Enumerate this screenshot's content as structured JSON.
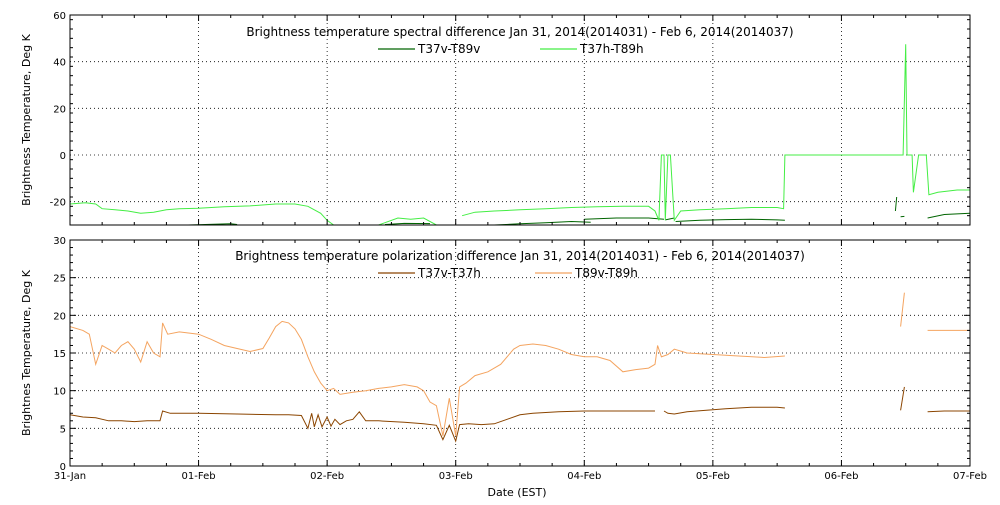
{
  "chart_data": [
    {
      "type": "line",
      "title": "Brightness temperature spectral difference     Jan 31, 2014(2014031) - Feb  6, 2014(2014037)",
      "xlabel": "",
      "ylabel": "Brightness Temperature, Deg K",
      "xlim": [
        0,
        7
      ],
      "ylim": [
        -30,
        60
      ],
      "yticks": [
        -20,
        0,
        20,
        40,
        60
      ],
      "grid": true,
      "legend_position": "top-center",
      "series": [
        {
          "name": "T37v-T89v",
          "color": "#006400",
          "segments": [
            [
              [
                0.92,
                -30.0
              ],
              [
                1.25,
                -29.5
              ],
              [
                1.3,
                -29.8
              ]
            ],
            [
              [
                2.45,
                -29.8
              ],
              [
                2.6,
                -29.3
              ],
              [
                2.8,
                -29.4
              ]
            ],
            [
              [
                3.3,
                -30.0
              ],
              [
                3.5,
                -29.5
              ],
              [
                3.7,
                -29.0
              ],
              [
                3.9,
                -28.5
              ],
              [
                4.05,
                -28.8
              ]
            ],
            [
              [
                4.0,
                -27.5
              ],
              [
                4.25,
                -27.0
              ],
              [
                4.5,
                -27.0
              ],
              [
                4.62,
                -27.5
              ]
            ],
            [
              [
                4.63,
                -27.8
              ],
              [
                4.7,
                -27.0
              ]
            ],
            [
              [
                4.71,
                -28.5
              ],
              [
                4.9,
                -28.0
              ],
              [
                5.1,
                -27.7
              ],
              [
                5.3,
                -27.5
              ],
              [
                5.5,
                -27.8
              ],
              [
                5.56,
                -28.0
              ]
            ],
            [
              [
                6.42,
                -24.0
              ],
              [
                6.43,
                -18.0
              ]
            ],
            [
              [
                6.46,
                -26.5
              ],
              [
                6.49,
                -26.3
              ]
            ],
            [
              [
                6.67,
                -27.0
              ],
              [
                6.8,
                -25.5
              ],
              [
                7.0,
                -25.0
              ]
            ]
          ]
        },
        {
          "name": "T37h-T89h",
          "color": "#44EE44",
          "segments": [
            [
              [
                0.0,
                -21.0
              ],
              [
                0.12,
                -20.5
              ],
              [
                0.2,
                -21.0
              ],
              [
                0.25,
                -23.0
              ],
              [
                0.35,
                -23.5
              ],
              [
                0.45,
                -24.0
              ],
              [
                0.55,
                -25.0
              ],
              [
                0.65,
                -24.5
              ],
              [
                0.75,
                -23.5
              ],
              [
                0.85,
                -23.0
              ],
              [
                1.0,
                -22.8
              ],
              [
                1.2,
                -22.2
              ],
              [
                1.4,
                -21.8
              ],
              [
                1.6,
                -21.0
              ],
              [
                1.75,
                -21.0
              ],
              [
                1.85,
                -22.0
              ],
              [
                1.95,
                -25.0
              ],
              [
                2.0,
                -28.0
              ],
              [
                2.05,
                -30.0
              ]
            ],
            [
              [
                2.4,
                -30.0
              ],
              [
                2.55,
                -27.0
              ],
              [
                2.65,
                -27.5
              ],
              [
                2.75,
                -27.0
              ],
              [
                2.85,
                -30.0
              ]
            ],
            [
              [
                3.05,
                -26.0
              ],
              [
                3.15,
                -24.5
              ],
              [
                3.3,
                -24.0
              ],
              [
                3.5,
                -23.5
              ],
              [
                3.7,
                -23.0
              ],
              [
                3.9,
                -22.5
              ],
              [
                4.1,
                -22.2
              ],
              [
                4.3,
                -22.0
              ],
              [
                4.5,
                -22.0
              ],
              [
                4.55,
                -24.0
              ],
              [
                4.58,
                -28.0
              ],
              [
                4.6,
                0.0
              ],
              [
                4.62,
                0.0
              ],
              [
                4.63,
                -28.0
              ],
              [
                4.65,
                0.0
              ],
              [
                4.67,
                0.0
              ],
              [
                4.7,
                -28.0
              ],
              [
                4.75,
                -24.0
              ],
              [
                4.9,
                -23.5
              ],
              [
                5.1,
                -23.0
              ],
              [
                5.3,
                -22.5
              ],
              [
                5.5,
                -22.5
              ],
              [
                5.55,
                -23.0
              ],
              [
                5.56,
                0.0
              ],
              [
                5.8,
                0.0
              ],
              [
                6.0,
                0.0
              ],
              [
                6.2,
                0.0
              ],
              [
                6.4,
                0.0
              ],
              [
                6.48,
                0.0
              ],
              [
                6.5,
                47.5
              ],
              [
                6.51,
                0.0
              ],
              [
                6.55,
                0.0
              ],
              [
                6.56,
                -16.0
              ],
              [
                6.6,
                0.0
              ],
              [
                6.66,
                0.0
              ],
              [
                6.68,
                -17.0
              ],
              [
                6.75,
                -16.0
              ],
              [
                6.9,
                -15.0
              ],
              [
                7.0,
                -15.0
              ]
            ]
          ]
        }
      ]
    },
    {
      "type": "line",
      "title": "Brightness temperature polarization difference     Jan 31, 2014(2014031) - Feb  6, 2014(2014037)",
      "xlabel": "Date (EST)",
      "ylabel": "Brightnes Temperature, Deg K",
      "xlim": [
        0,
        7
      ],
      "ylim": [
        0,
        30
      ],
      "yticks": [
        0,
        5,
        10,
        15,
        20,
        25,
        30
      ],
      "categories": [
        "31-Jan",
        "01-Feb",
        "02-Feb",
        "03-Feb",
        "04-Feb",
        "05-Feb",
        "06-Feb",
        "07-Feb"
      ],
      "grid": true,
      "legend_position": "top-center",
      "series": [
        {
          "name": "T37v-T37h",
          "color": "#8B4500",
          "segments": [
            [
              [
                0.0,
                6.8
              ],
              [
                0.1,
                6.5
              ],
              [
                0.2,
                6.4
              ],
              [
                0.3,
                6.0
              ],
              [
                0.4,
                6.0
              ],
              [
                0.5,
                5.9
              ],
              [
                0.6,
                6.0
              ],
              [
                0.7,
                6.0
              ],
              [
                0.72,
                7.3
              ],
              [
                0.78,
                7.0
              ],
              [
                1.0,
                7.0
              ],
              [
                1.3,
                6.9
              ],
              [
                1.6,
                6.8
              ],
              [
                1.7,
                6.8
              ],
              [
                1.8,
                6.7
              ],
              [
                1.85,
                5.0
              ],
              [
                1.88,
                7.0
              ],
              [
                1.9,
                5.2
              ],
              [
                1.93,
                6.8
              ],
              [
                1.96,
                5.2
              ],
              [
                2.0,
                6.5
              ],
              [
                2.03,
                5.3
              ],
              [
                2.06,
                6.2
              ],
              [
                2.1,
                5.5
              ],
              [
                2.15,
                6.0
              ],
              [
                2.2,
                6.2
              ],
              [
                2.25,
                7.2
              ],
              [
                2.3,
                6.0
              ],
              [
                2.4,
                6.0
              ],
              [
                2.6,
                5.8
              ],
              [
                2.75,
                5.6
              ],
              [
                2.85,
                5.4
              ],
              [
                2.9,
                3.5
              ],
              [
                2.95,
                5.4
              ],
              [
                3.0,
                3.3
              ],
              [
                3.03,
                5.5
              ],
              [
                3.1,
                5.6
              ],
              [
                3.2,
                5.5
              ],
              [
                3.3,
                5.6
              ],
              [
                3.4,
                6.2
              ],
              [
                3.5,
                6.8
              ],
              [
                3.6,
                7.0
              ],
              [
                3.8,
                7.2
              ],
              [
                4.0,
                7.3
              ],
              [
                4.3,
                7.3
              ],
              [
                4.55,
                7.3
              ]
            ],
            [
              [
                4.62,
                7.3
              ],
              [
                4.65,
                7.0
              ],
              [
                4.7,
                6.9
              ],
              [
                4.8,
                7.2
              ],
              [
                4.95,
                7.4
              ],
              [
                5.1,
                7.6
              ],
              [
                5.3,
                7.8
              ],
              [
                5.5,
                7.8
              ],
              [
                5.56,
                7.7
              ]
            ],
            [
              [
                6.46,
                7.4
              ],
              [
                6.49,
                10.5
              ]
            ],
            [
              [
                6.67,
                7.2
              ],
              [
                6.8,
                7.3
              ],
              [
                7.0,
                7.3
              ]
            ]
          ]
        },
        {
          "name": "T89v-T89h",
          "color": "#F4A460",
          "segments": [
            [
              [
                0.0,
                18.5
              ],
              [
                0.1,
                18.0
              ],
              [
                0.15,
                17.5
              ],
              [
                0.2,
                13.5
              ],
              [
                0.25,
                16.0
              ],
              [
                0.3,
                15.5
              ],
              [
                0.35,
                15.0
              ],
              [
                0.4,
                16.0
              ],
              [
                0.45,
                16.5
              ],
              [
                0.5,
                15.5
              ],
              [
                0.55,
                13.8
              ],
              [
                0.6,
                16.5
              ],
              [
                0.65,
                15.0
              ],
              [
                0.7,
                14.5
              ],
              [
                0.72,
                19.0
              ],
              [
                0.76,
                17.5
              ],
              [
                0.85,
                17.8
              ],
              [
                1.0,
                17.5
              ],
              [
                1.1,
                16.8
              ],
              [
                1.2,
                16.0
              ],
              [
                1.3,
                15.6
              ],
              [
                1.4,
                15.2
              ],
              [
                1.5,
                15.6
              ],
              [
                1.55,
                17.0
              ],
              [
                1.6,
                18.5
              ],
              [
                1.65,
                19.2
              ],
              [
                1.7,
                19.0
              ],
              [
                1.75,
                18.2
              ],
              [
                1.8,
                16.8
              ],
              [
                1.85,
                14.5
              ],
              [
                1.9,
                12.5
              ],
              [
                1.95,
                11.0
              ],
              [
                2.0,
                10.0
              ],
              [
                2.05,
                10.3
              ],
              [
                2.1,
                9.5
              ],
              [
                2.2,
                9.8
              ],
              [
                2.3,
                10.0
              ],
              [
                2.4,
                10.3
              ],
              [
                2.5,
                10.5
              ],
              [
                2.6,
                10.8
              ],
              [
                2.7,
                10.5
              ],
              [
                2.75,
                10.0
              ],
              [
                2.8,
                8.5
              ],
              [
                2.85,
                8.0
              ],
              [
                2.9,
                4.0
              ],
              [
                2.95,
                9.0
              ],
              [
                3.0,
                4.0
              ],
              [
                3.03,
                10.5
              ],
              [
                3.08,
                11.0
              ],
              [
                3.15,
                12.0
              ],
              [
                3.25,
                12.5
              ],
              [
                3.35,
                13.5
              ],
              [
                3.45,
                15.5
              ],
              [
                3.5,
                16.0
              ],
              [
                3.6,
                16.2
              ],
              [
                3.7,
                16.0
              ],
              [
                3.8,
                15.5
              ],
              [
                3.9,
                14.8
              ],
              [
                4.0,
                14.5
              ],
              [
                4.1,
                14.5
              ],
              [
                4.2,
                14.0
              ],
              [
                4.3,
                12.5
              ],
              [
                4.4,
                12.8
              ],
              [
                4.5,
                13.0
              ],
              [
                4.55,
                13.5
              ],
              [
                4.57,
                16.0
              ],
              [
                4.6,
                14.5
              ],
              [
                4.65,
                14.8
              ],
              [
                4.7,
                15.5
              ],
              [
                4.8,
                15.0
              ],
              [
                5.0,
                14.8
              ],
              [
                5.2,
                14.6
              ],
              [
                5.4,
                14.4
              ],
              [
                5.56,
                14.6
              ]
            ],
            [
              [
                6.46,
                18.5
              ],
              [
                6.49,
                23.0
              ]
            ],
            [
              [
                6.67,
                18.0
              ],
              [
                6.8,
                18.0
              ],
              [
                7.0,
                18.0
              ]
            ]
          ]
        }
      ]
    }
  ]
}
